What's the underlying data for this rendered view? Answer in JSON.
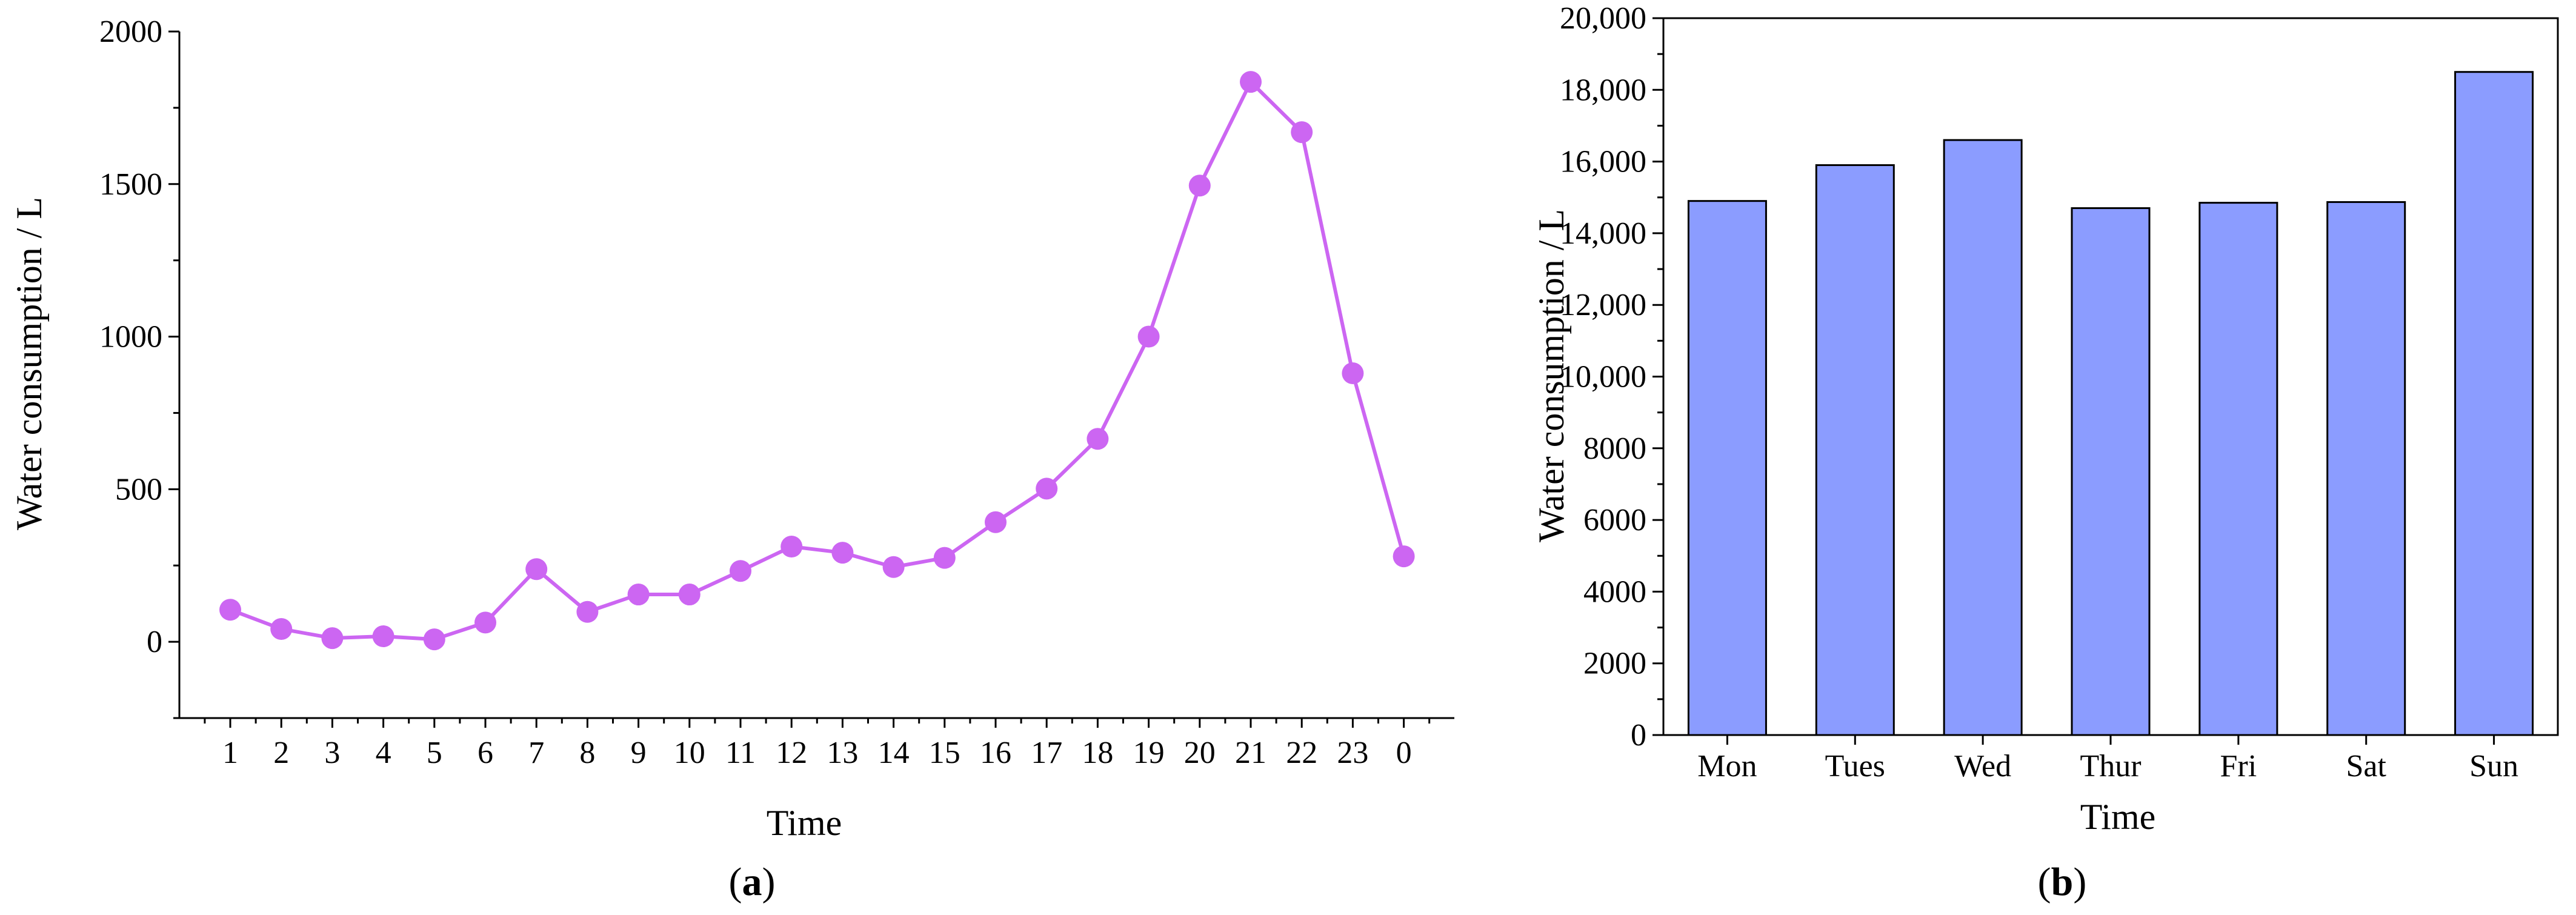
{
  "chart_data": [
    {
      "type": "line",
      "panel": "a",
      "xlabel": "Time",
      "ylabel": "Water consumption / L",
      "categories": [
        "1",
        "2",
        "3",
        "4",
        "5",
        "6",
        "7",
        "8",
        "9",
        "10",
        "11",
        "12",
        "13",
        "14",
        "15",
        "16",
        "17",
        "18",
        "19",
        "20",
        "21",
        "22",
        "23",
        "0"
      ],
      "values": [
        105,
        42,
        12,
        18,
        8,
        63,
        238,
        98,
        155,
        155,
        232,
        312,
        292,
        245,
        275,
        392,
        502,
        665,
        1000,
        1495,
        1835,
        1670,
        880,
        280
      ],
      "yticks": [
        "0",
        "500",
        "1000",
        "1500",
        "2000"
      ],
      "ylim": [
        -250,
        2000
      ],
      "color": "#cc66f2",
      "grid": false
    },
    {
      "type": "bar",
      "panel": "b",
      "xlabel": "Time",
      "ylabel": "Water consumption / L",
      "categories": [
        "Mon",
        "Tues",
        "Wed",
        "Thur",
        "Fri",
        "Sat",
        "Sun"
      ],
      "values": [
        14900,
        15900,
        16600,
        14700,
        14850,
        14870,
        18500
      ],
      "yticks": [
        "0",
        "2000",
        "4000",
        "6000",
        "8000",
        "10,000",
        "12,000",
        "14,000",
        "16,000",
        "18,000",
        "20,000"
      ],
      "ylim": [
        0,
        20000
      ],
      "color": "#8b9cff",
      "grid": false
    }
  ],
  "captions": {
    "a": {
      "open": "(",
      "letter": "a",
      "close": ")"
    },
    "b": {
      "open": "(",
      "letter": "b",
      "close": ")"
    }
  }
}
